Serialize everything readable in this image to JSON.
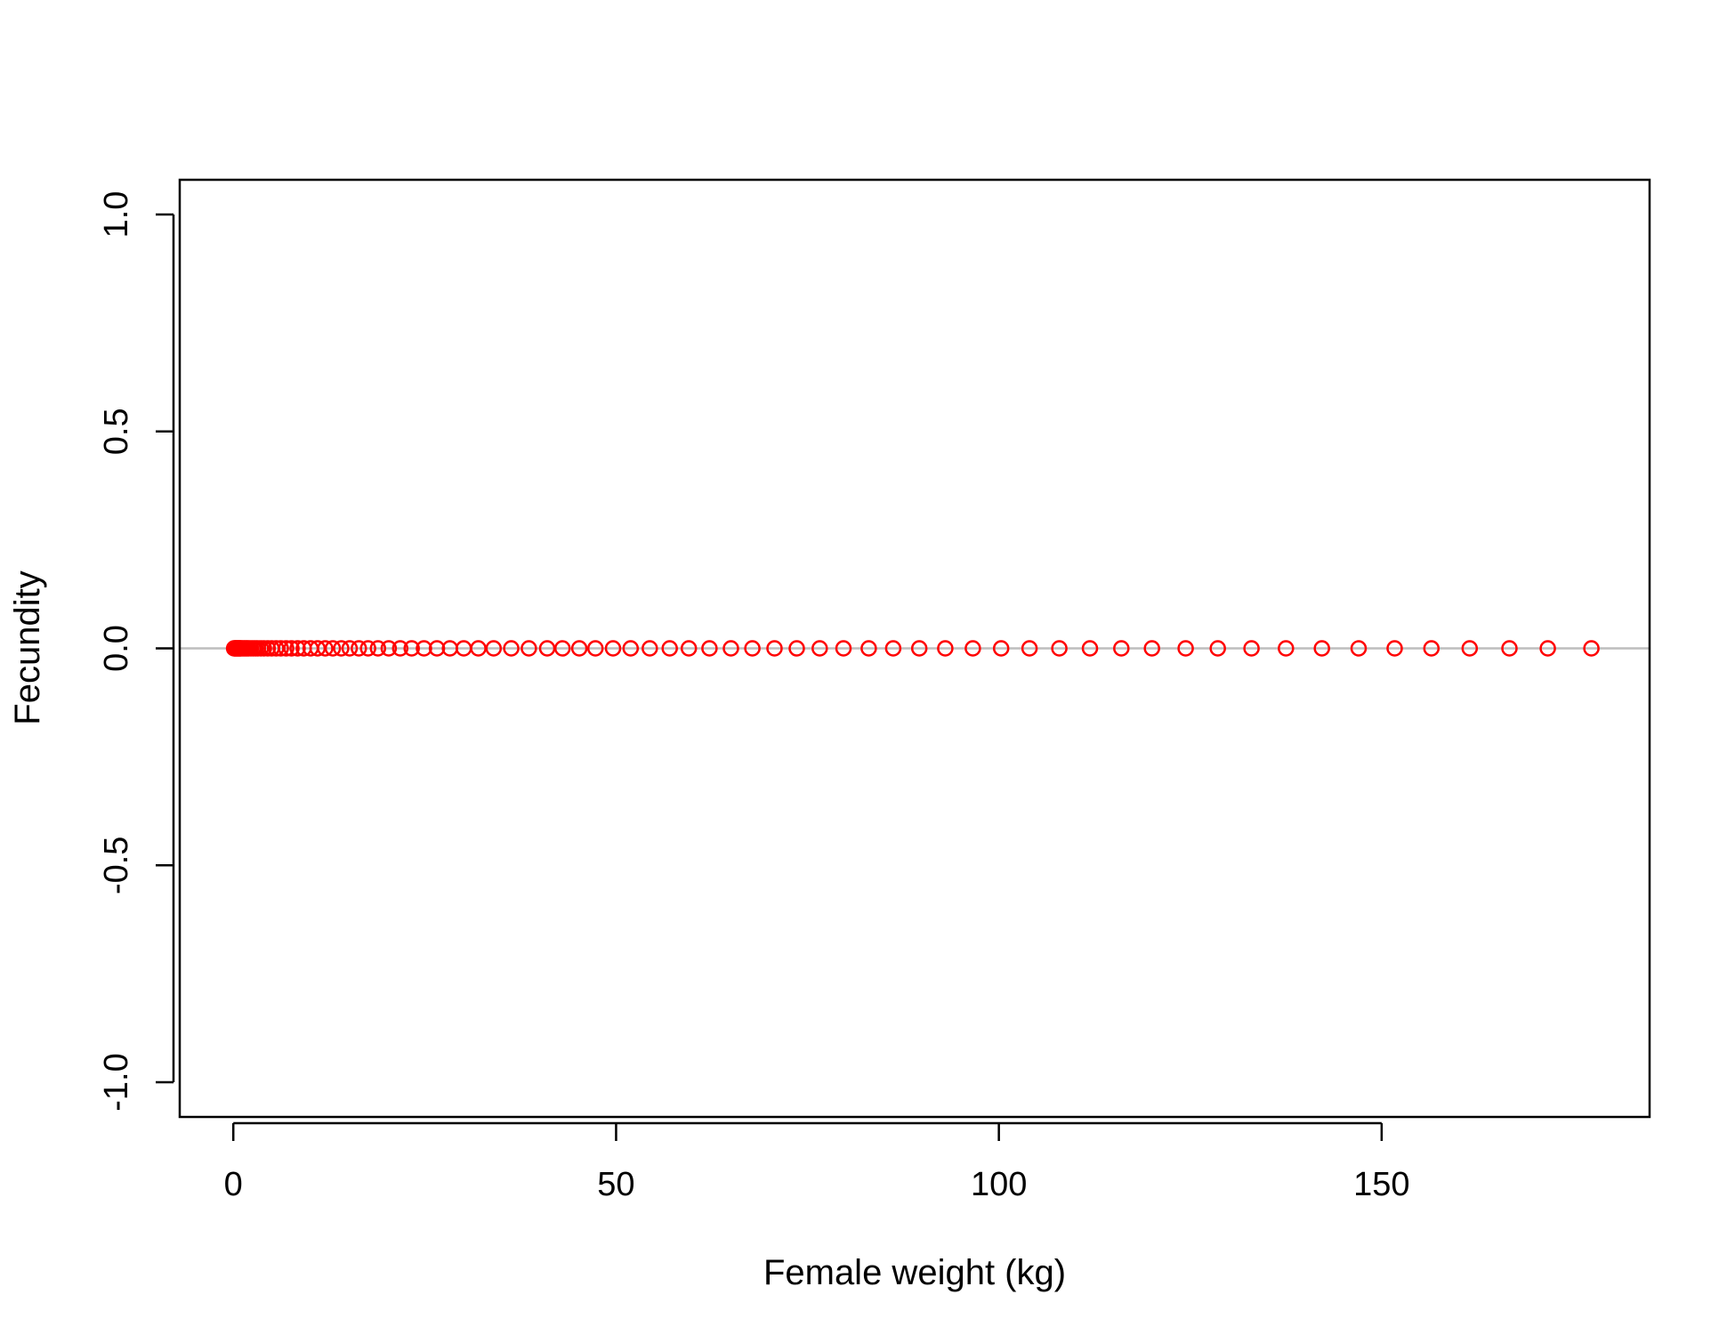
{
  "chart_data": {
    "type": "scatter",
    "title": "",
    "xlabel": "Female weight (kg)",
    "ylabel": "Fecundity",
    "xlim": [
      -7,
      185
    ],
    "ylim": [
      -1.08,
      1.08
    ],
    "x_ticks": [
      0,
      50,
      100,
      150
    ],
    "x_tick_labels": [
      "0",
      "50",
      "100",
      "150"
    ],
    "y_ticks": [
      -1.0,
      -0.5,
      0.0,
      0.5,
      1.0
    ],
    "y_tick_labels": [
      "-1.0",
      "-0.5",
      "0.0",
      "0.5",
      "1.0"
    ],
    "grid": false,
    "reference_line": {
      "y": 0,
      "color": "#bebebe"
    },
    "series": [
      {
        "color": "#ff0000",
        "marker": "open-circle",
        "x": [
          0.1,
          0.2,
          0.3,
          0.4,
          0.5,
          0.6,
          0.7,
          0.8,
          0.9,
          1.0,
          1.2,
          1.4,
          1.6,
          1.8,
          2.0,
          2.3,
          2.6,
          2.9,
          3.2,
          3.6,
          4.0,
          4.5,
          5.0,
          5.6,
          6.2,
          6.9,
          7.6,
          8.4,
          9.2,
          10.1,
          11.0,
          12.0,
          13.0,
          14.1,
          15.2,
          16.4,
          17.6,
          18.9,
          20.3,
          21.8,
          23.3,
          24.9,
          26.6,
          28.3,
          30.1,
          32.0,
          34.0,
          36.3,
          38.6,
          41.0,
          43.0,
          45.2,
          47.3,
          49.6,
          51.9,
          54.4,
          57.0,
          59.5,
          62.2,
          65.0,
          67.8,
          70.7,
          73.6,
          76.6,
          79.7,
          83.0,
          86.2,
          89.6,
          93.0,
          96.6,
          100.3,
          104.0,
          107.9,
          111.9,
          116.0,
          120.0,
          124.4,
          128.6,
          133.0,
          137.5,
          142.2,
          147.0,
          151.7,
          156.5,
          161.5,
          166.7,
          171.7,
          177.4
        ],
        "y_constant": 0
      }
    ]
  }
}
